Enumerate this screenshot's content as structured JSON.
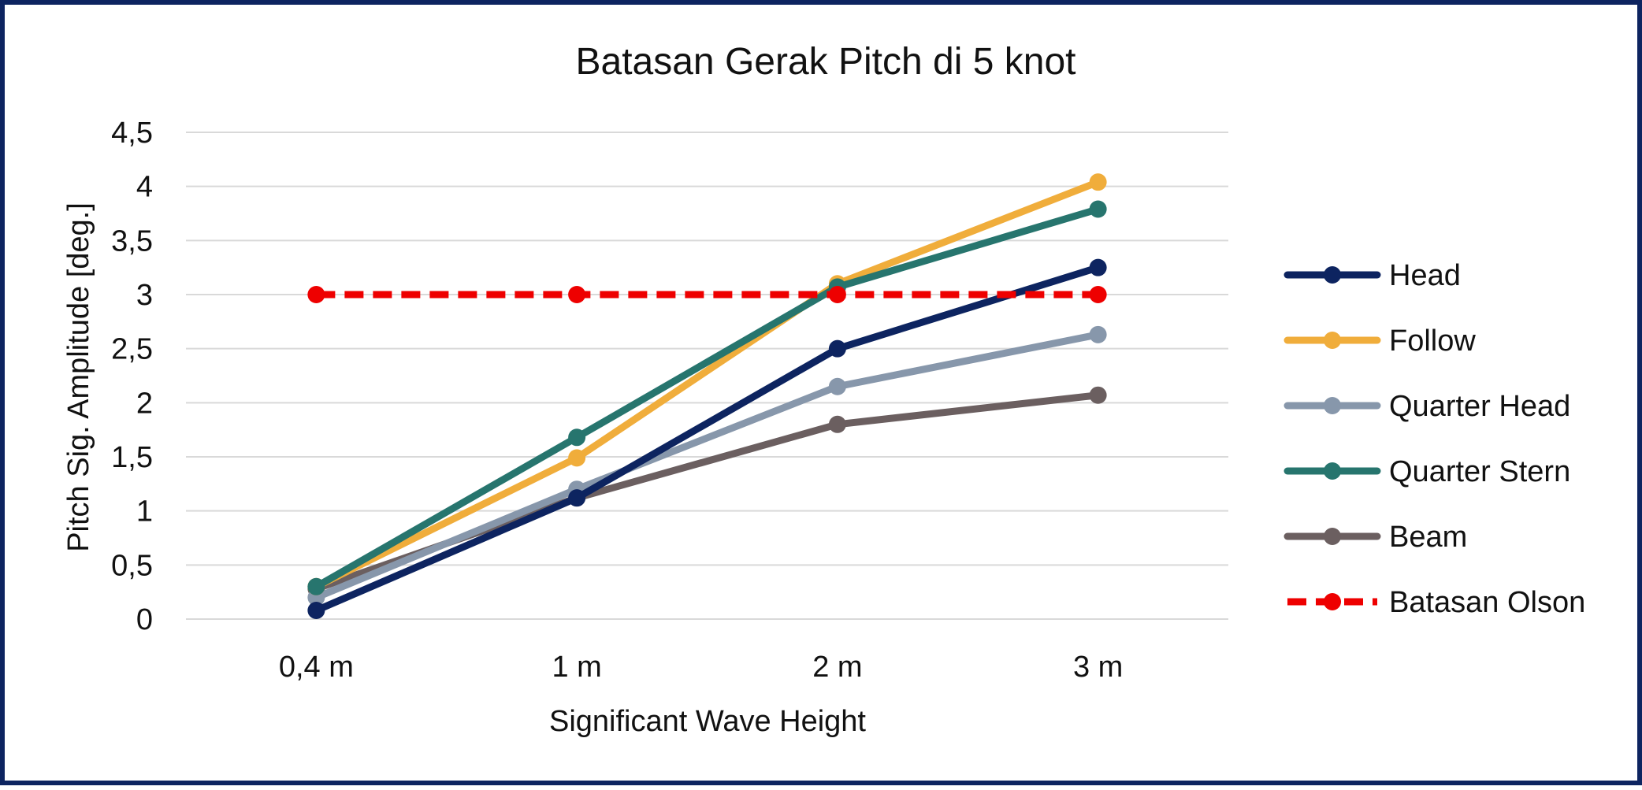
{
  "chart_data": {
    "type": "line",
    "title": "Batasan Gerak Pitch di 5 knot",
    "xlabel": "Significant Wave Height",
    "ylabel": "Pitch Sig. Amplitude [deg.]",
    "categories": [
      "0,4 m",
      "1 m",
      "2 m",
      "3 m"
    ],
    "ylim": [
      0,
      4.5
    ],
    "yticks": [
      0,
      0.5,
      1,
      1.5,
      2,
      2.5,
      3,
      3.5,
      4,
      4.5
    ],
    "ytick_labels": [
      "0",
      "0,5",
      "1",
      "1,5",
      "2",
      "2,5",
      "3",
      "3,5",
      "4",
      "4,5"
    ],
    "grid": true,
    "legend_position": "right",
    "series": [
      {
        "name": "Head",
        "values": [
          0.08,
          1.12,
          2.5,
          3.25
        ],
        "color": "#0d2460",
        "dashed": false
      },
      {
        "name": "Follow",
        "values": [
          0.3,
          1.49,
          3.1,
          4.04
        ],
        "color": "#f0ad3b",
        "dashed": false
      },
      {
        "name": "Quarter Head",
        "values": [
          0.2,
          1.2,
          2.15,
          2.63
        ],
        "color": "#8797ab",
        "dashed": false
      },
      {
        "name": "Quarter Stern",
        "values": [
          0.3,
          1.68,
          3.07,
          3.79
        ],
        "color": "#27756e",
        "dashed": false
      },
      {
        "name": "Beam",
        "values": [
          0.28,
          1.12,
          1.8,
          2.07
        ],
        "color": "#6b5f60",
        "dashed": false
      },
      {
        "name": "Batasan Olson",
        "values": [
          3,
          3,
          3,
          3
        ],
        "color": "#ee0000",
        "dashed": true
      }
    ]
  }
}
